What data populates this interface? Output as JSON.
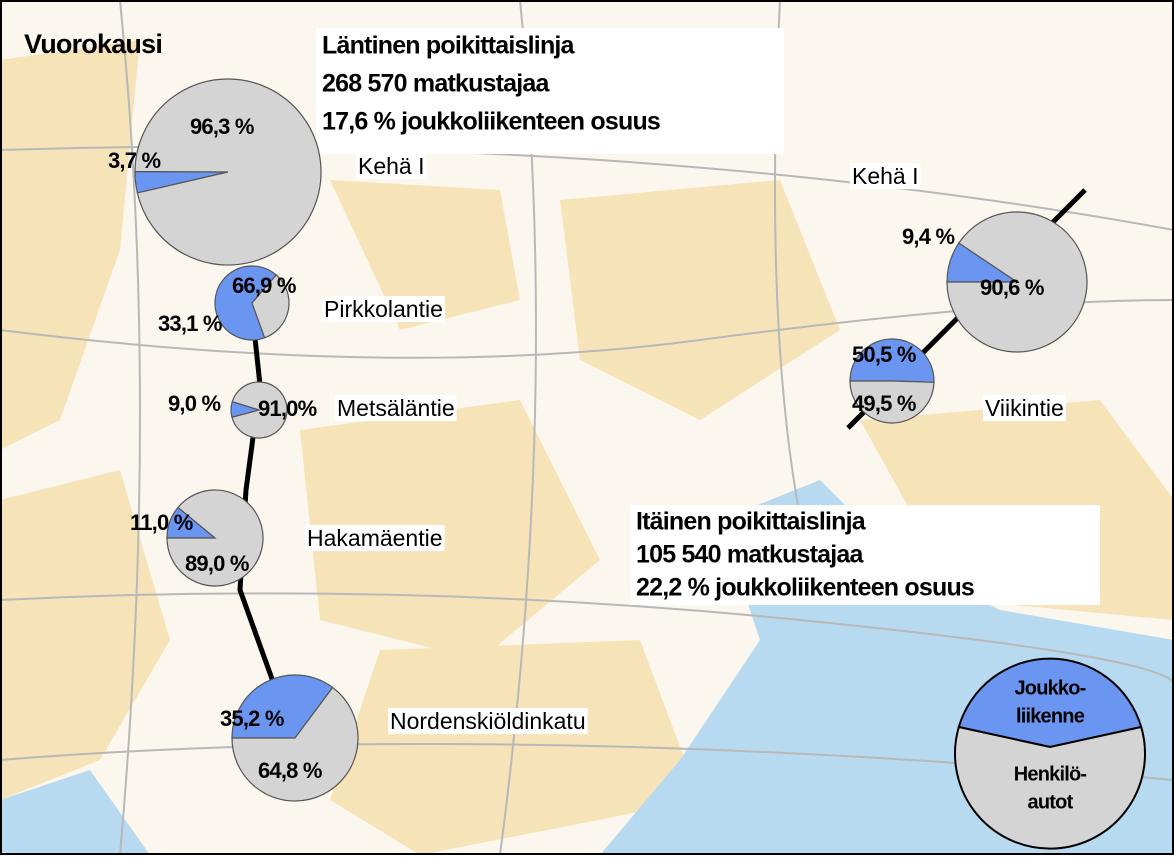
{
  "title": "Vuorokausi",
  "western": {
    "lines": [
      "Läntinen poikittaislinja",
      "268 570 matkustajaa",
      "17,6 % joukkoliikenteen osuus"
    ]
  },
  "eastern": {
    "lines": [
      "Itäinen poikittaislinja",
      "105 540 matkustajaa",
      "22,2 % joukkoliikenteen osuus"
    ]
  },
  "colors": {
    "transit": "#6a96f2",
    "cars": "#d4d4d4"
  },
  "pies": [
    {
      "name": "Kehä I",
      "values": [
        3.7,
        96.3
      ],
      "value_labels": [
        "3,7 %",
        "96,3 %"
      ]
    },
    {
      "name": "Pirkkolantie",
      "values": [
        66.9,
        33.1
      ],
      "value_labels": [
        "66,9 %",
        "33,1 %"
      ]
    },
    {
      "name": "Metsäläntie",
      "values": [
        9.0,
        91.0
      ],
      "value_labels": [
        "9,0 %",
        "91,0%"
      ]
    },
    {
      "name": "Hakamäentie",
      "values": [
        11.0,
        89.0
      ],
      "value_labels": [
        "11,0 %",
        "89,0 %"
      ]
    },
    {
      "name": "Nordenskiöldinkatu",
      "values": [
        35.2,
        64.8
      ],
      "value_labels": [
        "35,2 %",
        "64,8 %"
      ]
    },
    {
      "name": "Kehä I",
      "values": [
        9.4,
        90.6
      ],
      "value_labels": [
        "9,4 %",
        "90,6 %"
      ]
    },
    {
      "name": "Viikintie",
      "values": [
        50.5,
        49.5
      ],
      "value_labels": [
        "50,5 %",
        "49,5 %"
      ]
    }
  ],
  "legend": {
    "transit": [
      "Joukko-",
      "liikenne"
    ],
    "cars": [
      "Henkilö-",
      "autot"
    ]
  }
}
